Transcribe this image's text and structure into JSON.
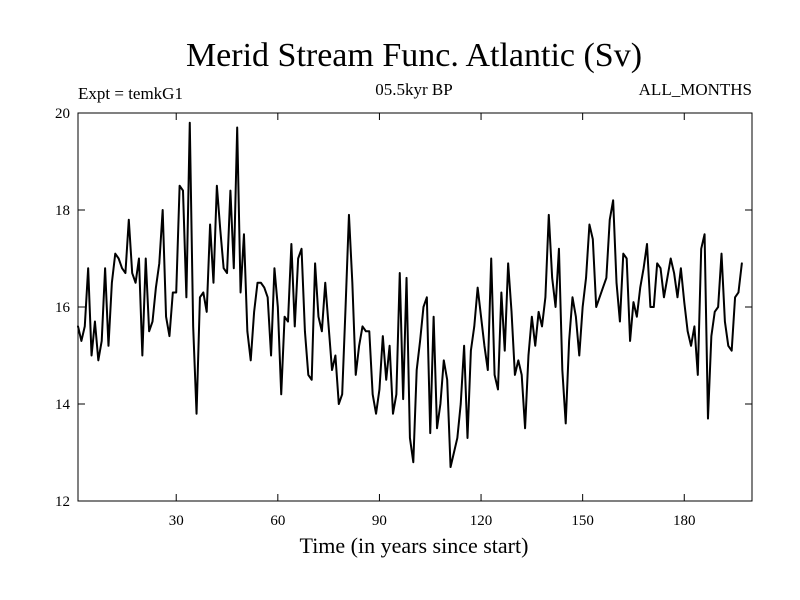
{
  "chart_data": {
    "type": "line",
    "title": "Merid Stream Func. Atlantic (Sv)",
    "subtitle_left": "Expt = temkG1",
    "subtitle_center": "05.5kyr BP",
    "subtitle_right": "ALL_MONTHS",
    "xlabel": "Time (in years since start)",
    "ylabel": "",
    "xlim": [
      1,
      200
    ],
    "ylim": [
      12,
      20
    ],
    "xticks": [
      30,
      60,
      90,
      120,
      150,
      180
    ],
    "xtick_labels": [
      "30",
      "60",
      "90",
      "120",
      "150",
      "180"
    ],
    "yticks": [
      12,
      14,
      16,
      18,
      20
    ],
    "ytick_labels": [
      "12",
      "14",
      "16",
      "18",
      "20"
    ],
    "grid": false,
    "line_color": "#000000",
    "series": [
      {
        "name": "Merid Stream Func. Atlantic",
        "x_start": 1,
        "x_step": 1,
        "values": [
          15.6,
          15.3,
          15.6,
          16.8,
          15.0,
          15.7,
          14.9,
          15.3,
          16.8,
          15.2,
          16.5,
          17.1,
          17.0,
          16.8,
          16.7,
          17.8,
          16.7,
          16.5,
          17.0,
          15.0,
          17.0,
          15.5,
          15.7,
          16.4,
          16.9,
          18.0,
          15.8,
          15.4,
          16.3,
          16.3,
          18.5,
          18.4,
          16.2,
          19.8,
          15.6,
          13.8,
          16.2,
          16.3,
          15.9,
          17.7,
          16.5,
          18.5,
          17.6,
          16.8,
          16.7,
          18.4,
          16.8,
          19.7,
          16.3,
          17.5,
          15.5,
          14.9,
          15.9,
          16.5,
          16.5,
          16.4,
          16.2,
          15.0,
          16.8,
          16.0,
          14.2,
          15.8,
          15.7,
          17.3,
          15.6,
          17.0,
          17.2,
          15.5,
          14.6,
          14.5,
          16.9,
          15.8,
          15.5,
          16.5,
          15.6,
          14.7,
          15.0,
          14.0,
          14.2,
          16.0,
          17.9,
          16.5,
          14.6,
          15.2,
          15.6,
          15.5,
          15.5,
          14.2,
          13.8,
          14.3,
          15.4,
          14.5,
          15.2,
          13.8,
          14.2,
          16.7,
          14.1,
          16.6,
          13.3,
          12.8,
          14.7,
          15.3,
          16.0,
          16.2,
          13.4,
          15.8,
          13.5,
          14.0,
          14.9,
          14.5,
          12.7,
          13.0,
          13.3,
          14.0,
          15.2,
          13.3,
          15.1,
          15.6,
          16.4,
          15.8,
          15.2,
          14.7,
          17.0,
          14.6,
          14.3,
          16.3,
          15.1,
          16.9,
          15.9,
          14.6,
          14.9,
          14.6,
          13.5,
          15.0,
          15.8,
          15.2,
          15.9,
          15.6,
          16.2,
          17.9,
          16.6,
          16.0,
          17.2,
          14.7,
          13.6,
          15.3,
          16.2,
          15.8,
          15.0,
          16.0,
          16.6,
          17.7,
          17.4,
          16.0,
          16.2,
          16.4,
          16.6,
          17.8,
          18.2,
          16.5,
          15.7,
          17.1,
          17.0,
          15.3,
          16.1,
          15.8,
          16.4,
          16.8,
          17.3,
          16.0,
          16.0,
          16.9,
          16.8,
          16.2,
          16.6,
          17.0,
          16.7,
          16.2,
          16.8,
          16.1,
          15.5,
          15.2,
          15.6,
          14.6,
          17.2,
          17.5,
          13.7,
          15.4,
          15.9,
          16.0,
          17.1,
          15.7,
          15.2,
          15.1,
          16.2,
          16.3,
          16.9
        ]
      }
    ]
  }
}
